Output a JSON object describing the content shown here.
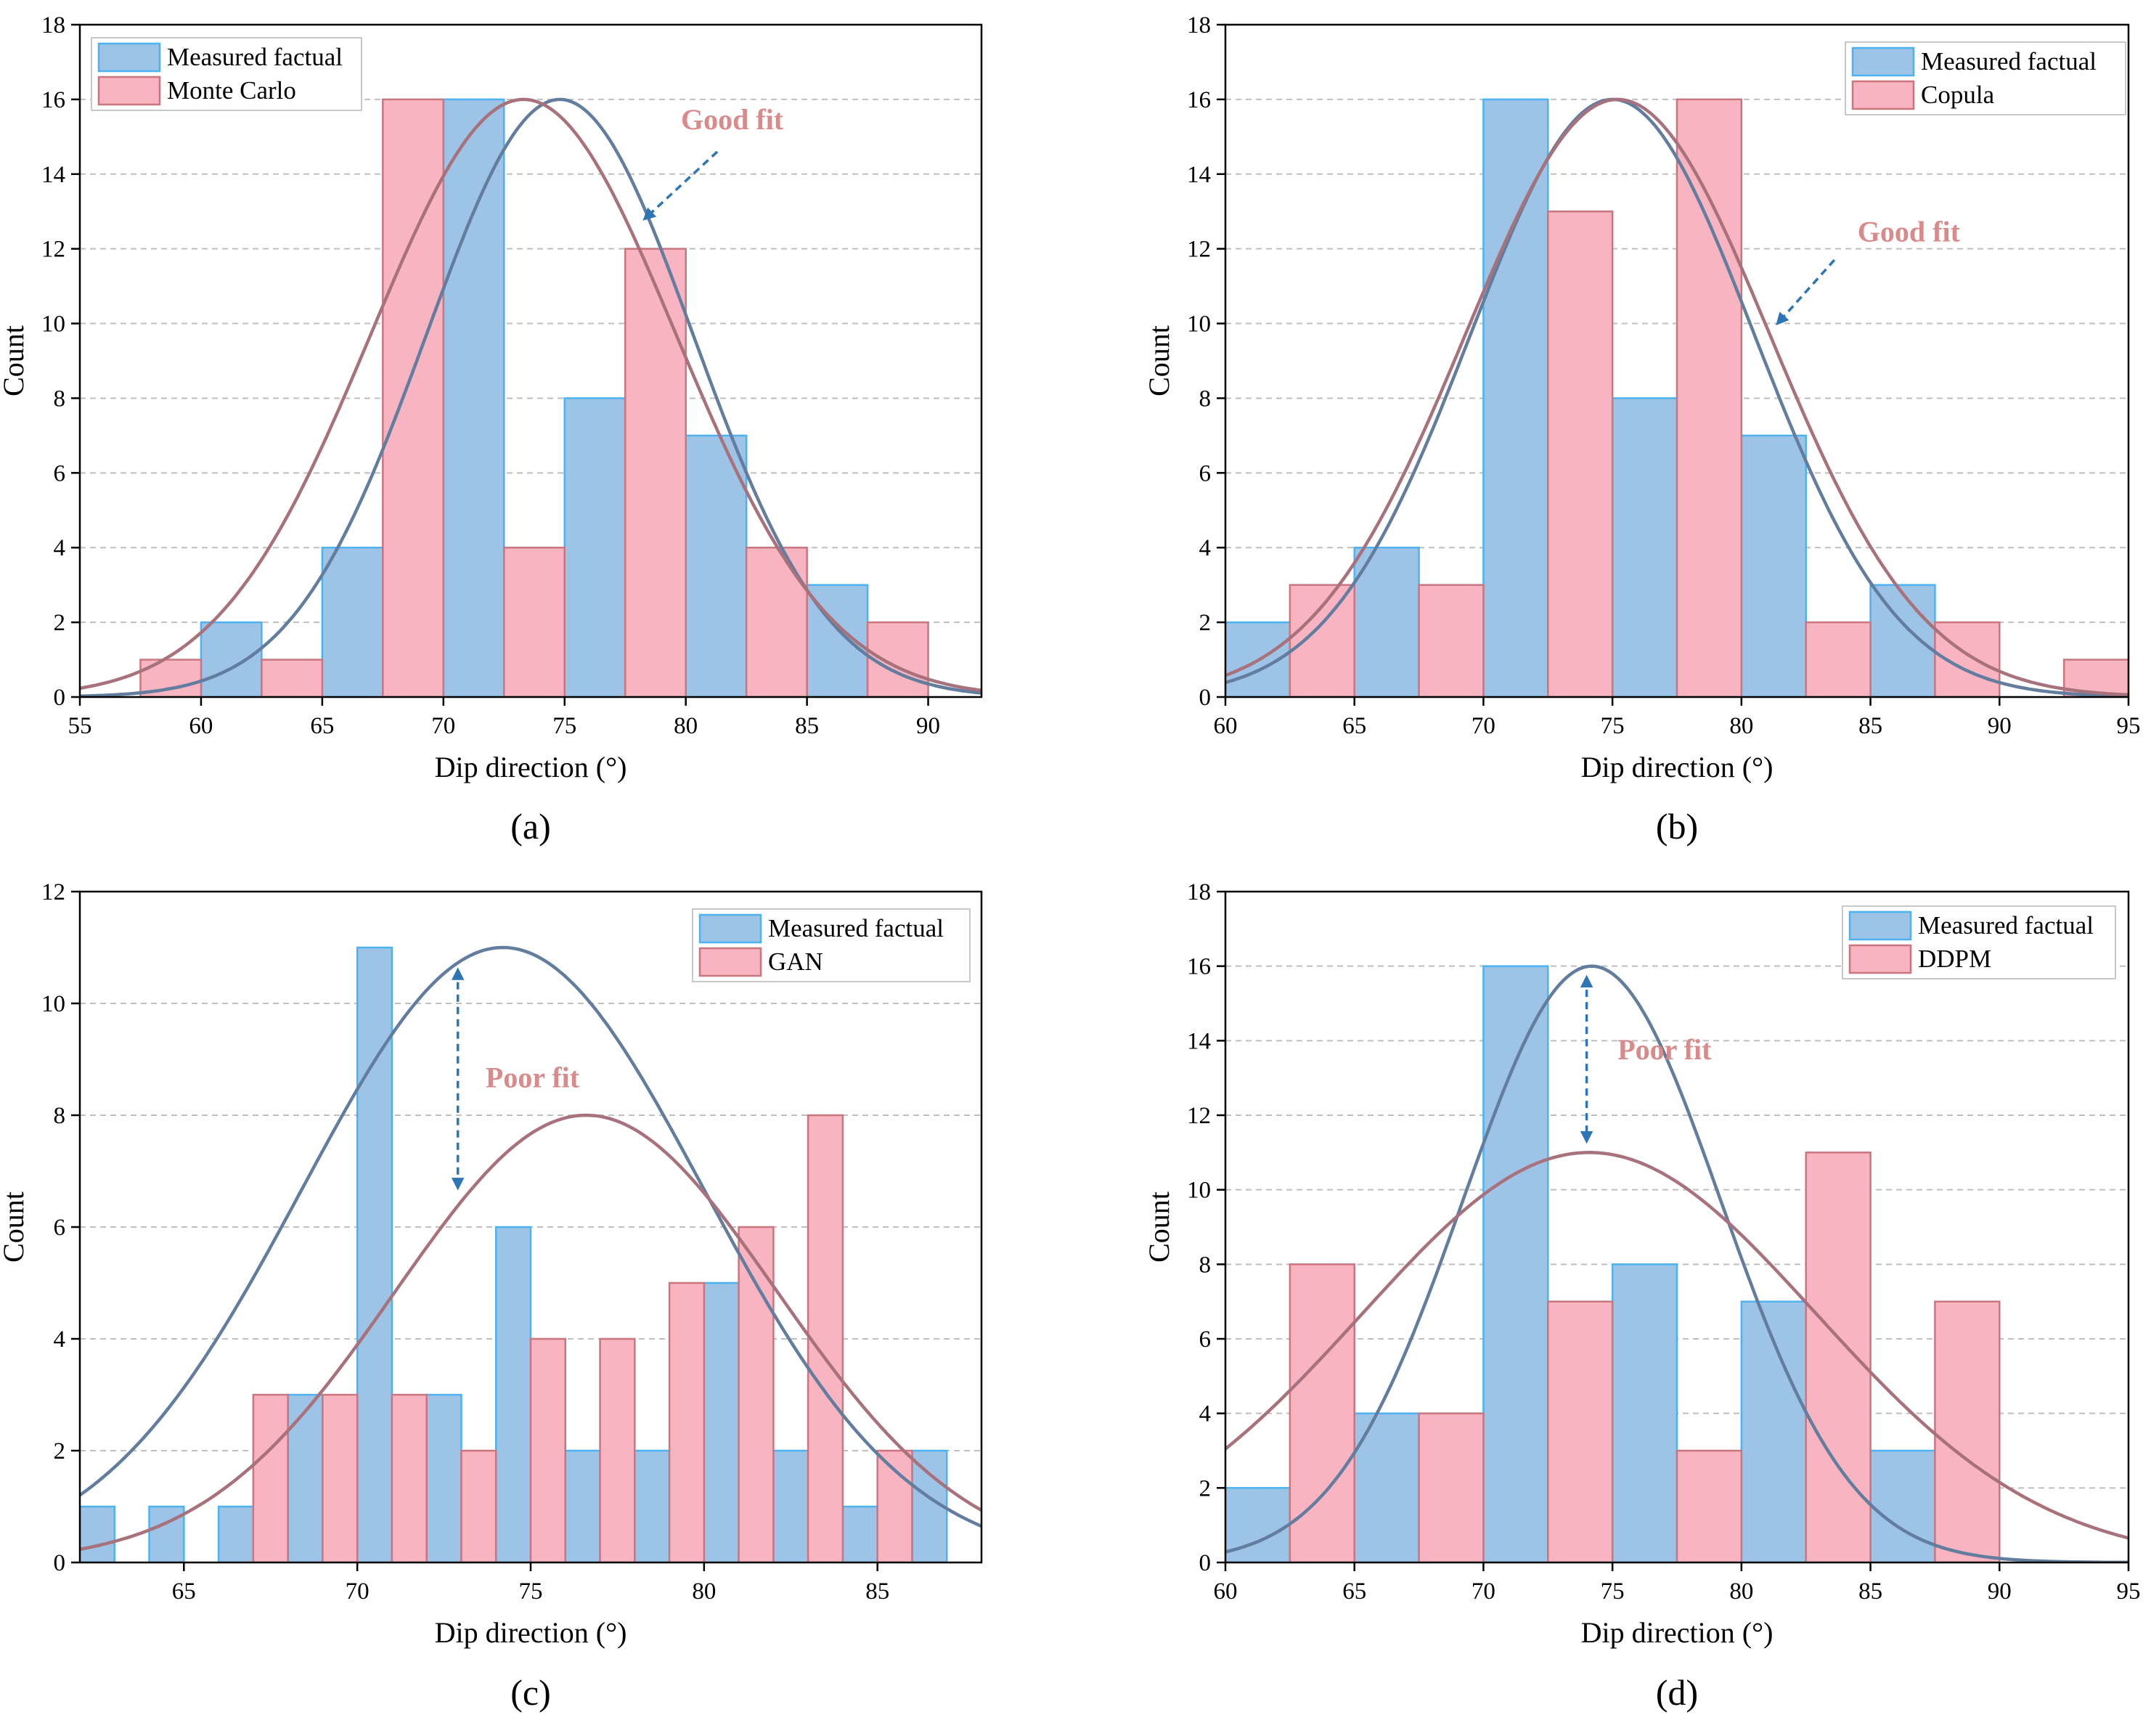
{
  "colors": {
    "measured_fill": "#9dc3e6",
    "measured_edge": "#4db3f0",
    "sim_fill": "#f9b4c1",
    "sim_edge": "#c9767f",
    "measured_curve": "#637d9e",
    "sim_curve": "#a8727c",
    "annotation_text": "#d98a8a",
    "arrow": "#2e75b6",
    "grid": "#bfbfbf"
  },
  "chart_data": [
    {
      "id": "a",
      "type": "bar",
      "caption": "(a)",
      "xlabel": "Dip direction (°)",
      "ylabel": "Count",
      "xlim": [
        55,
        92.2
      ],
      "ylim": [
        0,
        18
      ],
      "xticks": [
        55,
        60,
        65,
        70,
        75,
        80,
        85,
        90
      ],
      "yticks": [
        0,
        2,
        4,
        6,
        8,
        10,
        12,
        14,
        16,
        18
      ],
      "legend": {
        "position": "top-left",
        "entries": [
          "Measured factual",
          "Monte Carlo"
        ]
      },
      "series": [
        {
          "name": "Measured factual",
          "bin_width": 2.5,
          "bins": [
            [
              60,
              2
            ],
            [
              65,
              4
            ],
            [
              70,
              16
            ],
            [
              75,
              8
            ],
            [
              80,
              7
            ],
            [
              85,
              3
            ]
          ]
        },
        {
          "name": "Monte Carlo",
          "bin_width": 2.5,
          "bins": [
            [
              57.5,
              1
            ],
            [
              62.5,
              1
            ],
            [
              67.5,
              16
            ],
            [
              72.5,
              4
            ],
            [
              77.5,
              12
            ],
            [
              82.5,
              4
            ],
            [
              87.5,
              2
            ]
          ]
        }
      ],
      "curves": [
        {
          "name": "Measured factual fit",
          "mean": 74.8,
          "sd": 5.5,
          "peak": 16
        },
        {
          "name": "Monte Carlo fit",
          "mean": 73.3,
          "sd": 6.3,
          "peak": 16
        }
      ],
      "annotation": {
        "text": "Good fit",
        "style": "single-arrow",
        "label_at": [
          79.8,
          15.2
        ],
        "from": [
          81.3,
          14.6
        ],
        "to": [
          78.3,
          12.8
        ]
      }
    },
    {
      "id": "b",
      "type": "bar",
      "caption": "(b)",
      "xlabel": "Dip direction (°)",
      "ylabel": "Count",
      "xlim": [
        60,
        95
      ],
      "ylim": [
        0,
        18
      ],
      "xticks": [
        60,
        65,
        70,
        75,
        80,
        85,
        90,
        95
      ],
      "yticks": [
        0,
        2,
        4,
        6,
        8,
        10,
        12,
        14,
        16,
        18
      ],
      "legend": {
        "position": "top-right",
        "entries": [
          "Measured factual",
          "Copula"
        ]
      },
      "series": [
        {
          "name": "Measured factual",
          "bin_width": 2.5,
          "bins": [
            [
              60,
              2
            ],
            [
              65,
              4
            ],
            [
              70,
              16
            ],
            [
              75,
              8
            ],
            [
              80,
              7
            ],
            [
              85,
              3
            ]
          ]
        },
        {
          "name": "Copula",
          "bin_width": 2.5,
          "bins": [
            [
              62.5,
              3
            ],
            [
              67.5,
              3
            ],
            [
              72.5,
              13
            ],
            [
              77.5,
              16
            ],
            [
              82.5,
              2
            ],
            [
              87.5,
              2
            ],
            [
              92.5,
              1
            ]
          ]
        }
      ],
      "curves": [
        {
          "name": "Measured factual fit",
          "mean": 75.0,
          "sd": 5.5,
          "peak": 16
        },
        {
          "name": "Copula fit",
          "mean": 75.2,
          "sd": 5.9,
          "peak": 16
        }
      ],
      "annotation": {
        "text": "Good fit",
        "style": "single-arrow",
        "label_at": [
          84.5,
          12.2
        ],
        "from": [
          83.6,
          11.7
        ],
        "to": [
          81.4,
          10.0
        ]
      }
    },
    {
      "id": "c",
      "type": "bar",
      "caption": "(c)",
      "xlabel": "Dip direction (°)",
      "ylabel": "Count",
      "xlim": [
        62,
        88
      ],
      "ylim": [
        0,
        12
      ],
      "xticks": [
        65,
        70,
        75,
        80,
        85
      ],
      "yticks": [
        0,
        2,
        4,
        6,
        8,
        10,
        12
      ],
      "legend": {
        "position": "top-right",
        "entries": [
          "Measured factual",
          "GAN"
        ]
      },
      "series": [
        {
          "name": "Measured factual",
          "bin_width": 1,
          "bins": [
            [
              62,
              1
            ],
            [
              64,
              1
            ],
            [
              66,
              1
            ],
            [
              68,
              3
            ],
            [
              70,
              11
            ],
            [
              72,
              3
            ],
            [
              74,
              6
            ],
            [
              76,
              2
            ],
            [
              78,
              2
            ],
            [
              80,
              5
            ],
            [
              82,
              2
            ],
            [
              84,
              1
            ],
            [
              86,
              2
            ]
          ]
        },
        {
          "name": "GAN",
          "bin_width": 1,
          "bins": [
            [
              67,
              3
            ],
            [
              69,
              3
            ],
            [
              71,
              3
            ],
            [
              73,
              2
            ],
            [
              75,
              4
            ],
            [
              77,
              4
            ],
            [
              79,
              5
            ],
            [
              81,
              6
            ],
            [
              83,
              8
            ],
            [
              85,
              2
            ]
          ]
        }
      ],
      "curves": [
        {
          "name": "Measured factual fit",
          "mean": 74.2,
          "sd": 5.8,
          "peak": 11
        },
        {
          "name": "GAN fit",
          "mean": 76.6,
          "sd": 5.5,
          "peak": 8
        }
      ],
      "annotation": {
        "text": "Poor fit",
        "style": "double-arrow",
        "label_at": [
          73.7,
          8.5
        ],
        "from": [
          72.9,
          10.6
        ],
        "to": [
          72.9,
          6.7
        ]
      }
    },
    {
      "id": "d",
      "type": "bar",
      "caption": "(d)",
      "xlabel": "Dip direction (°)",
      "ylabel": "Count",
      "xlim": [
        60,
        95
      ],
      "ylim": [
        0,
        18
      ],
      "xticks": [
        60,
        65,
        70,
        75,
        80,
        85,
        90,
        95
      ],
      "yticks": [
        0,
        2,
        4,
        6,
        8,
        10,
        12,
        14,
        16,
        18
      ],
      "legend": {
        "position": "top-right",
        "entries": [
          "Measured factual",
          "DDPM"
        ]
      },
      "series": [
        {
          "name": "Measured factual",
          "bin_width": 2.5,
          "bins": [
            [
              60,
              2
            ],
            [
              65,
              4
            ],
            [
              70,
              16
            ],
            [
              75,
              8
            ],
            [
              80,
              7
            ],
            [
              85,
              3
            ]
          ]
        },
        {
          "name": "DDPM",
          "bin_width": 2.5,
          "bins": [
            [
              62.5,
              8
            ],
            [
              67.5,
              4
            ],
            [
              72.5,
              7
            ],
            [
              77.5,
              3
            ],
            [
              82.5,
              11
            ],
            [
              87.5,
              7
            ]
          ]
        }
      ],
      "curves": [
        {
          "name": "Measured factual fit",
          "mean": 74.2,
          "sd": 5.0,
          "peak": 16
        },
        {
          "name": "DDPM fit",
          "mean": 74.1,
          "sd": 8.8,
          "peak": 11
        }
      ],
      "annotation": {
        "text": "Poor fit",
        "style": "double-arrow",
        "label_at": [
          75.2,
          13.5
        ],
        "from": [
          74.0,
          15.7
        ],
        "to": [
          74.0,
          11.3
        ]
      }
    }
  ]
}
